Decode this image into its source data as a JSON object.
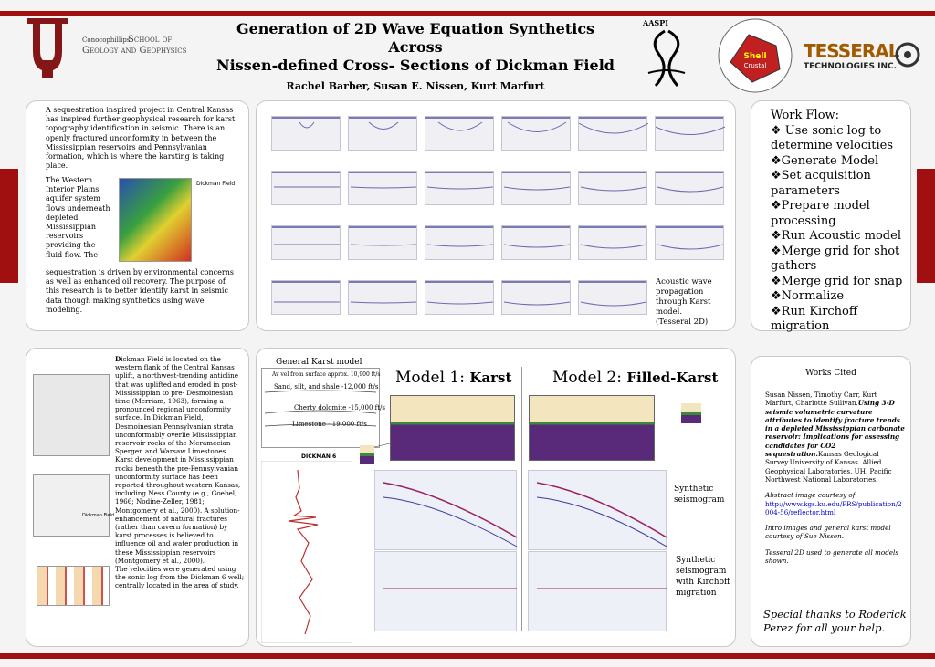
{
  "header": {
    "title_line1": "Generation of 2D Wave Equation Synthetics",
    "title_line2": "Across",
    "title_line3": "Nissen-defined Cross- Sections of Dickman Field",
    "authors": "Rachel Barber, Susan E. Nissen, Kurt Marfurt",
    "school_line1": "Conocophillips",
    "school_line2": "School of",
    "school_line3": "Geology and Geophysics",
    "aaspi_label": "AASPI",
    "tesseral_line1": "TESSERAL",
    "tesseral_line2": "TECHNOLOGIES INC."
  },
  "intro": {
    "para1": "A sequestration inspired project in Central Kansas has inspired further geophysical research for karst topography identification in seismic. There is an openly fractured unconformity in between the Mississippian reservoirs and Pennsylvanian formation, which is where the karsting is taking place.",
    "para2_lines": [
      "The Western",
      "Interior Plains",
      "aquifer system",
      "flows underneath",
      "depleted",
      "Mississippian",
      "reservoirs",
      "providing the",
      "fluid flow. The"
    ],
    "para3": "sequestration is driven by environmental concerns as well as enhanced oil recovery. The purpose of this research is to better identify karst in seismic data though making synthetics using wave modeling.",
    "map_label": "Dickman Field"
  },
  "propagation": {
    "caption": "Acoustic wave propagation through Karst model. (Tesseral 2D)"
  },
  "workflow": {
    "heading": "Work Flow:",
    "items": [
      "❖ Use sonic log to determine velocities",
      "❖Generate Model",
      "❖Set acquisition parameters",
      "❖Prepare model processing",
      "❖Run Acoustic model",
      "❖Merge grid for shot gathers",
      "❖Merge grid for  snap",
      "❖Normalize",
      "❖Run Kirchoff migration"
    ]
  },
  "dickman": {
    "dropcap": "D",
    "text": "ickman Field is located on the western flank of the Central Kansas uplift, a northwest-trending anticline that was uplifted and eroded in post-Mississippian to pre- Desmoinesian time (Merriam, 1963), forming a pronounced regional unconformity surface. In Dickman Field, Desmoinesian Pennsylvanian strata unconformably overlie Mississippian reservoir rocks of the Meramecian Spergen and Warsaw Limestones. Karst development in Mississippian rocks beneath the pre-Pennsylvanian unconformity surface has been reported throughout western Kansas, including Ness County (e.g., Goebel, 1966; Nodine-Zeller, 1981; Montgomery et al., 2000). A solution-enhancement of natural fractures (rather than cavern formation) by karst processes is believed to influence oil and water production in these Mississippian reservoirs (Montgomery et al., 2000).",
    "text2": "The velocities were generated using the sonic log from the Dickman 6 well; centrally located in the area of study.",
    "map_label": "Dickman Field"
  },
  "karst_model": {
    "heading": "General Karst model",
    "line1": "Av vel from surface approx. 10,900 ft/s",
    "line2": "Sand, silt, and shale -12,000 ft/s",
    "line3": "Cherty dolomite -15,000 ft/s",
    "line4": "Limestone - 19,000 ft/s",
    "well_label": "DICKMAN 6"
  },
  "models": {
    "model1_prefix": "Model 1: ",
    "model1_name": "Karst",
    "model2_prefix": "Model 2: ",
    "model2_name": "Filled-Karst",
    "synthetic_label": "Synthetic seismogram",
    "migration_label": "Synthetic seismogram with Kirchoff migration"
  },
  "works_cited": {
    "heading": "Works Cited",
    "ref_plain": "Susan Nissen, Timothy Carr, Kurt Marfurt, Charlotte Sullivan.",
    "ref_italic": "Using 3-D seismic volumetric curvature attributes to identify fracture trends in a depleted Mississippian carbonate reservoir: Implications for assessing candidates for CO2 sequestration.",
    "ref_tail": "Kansas Geological Survey.University of Kansas. Allied Geophysical Laboratories, UH. Pacific Northwest National Laboratories.",
    "abstract_credit": "Abstract image courtesy of",
    "link": "http://www.kgs.ku.edu/PRS/publication/2004-56/reflector.html",
    "intro_credit": "Intro images and general karst model courtesy of Sue Nissen.",
    "tesseral_credit": "Tesseral 2D used to generate all models shown.",
    "thanks": "Special thanks to Roderick Perez for all your help."
  },
  "colors": {
    "ou_crimson": "#841617",
    "bar_red": "#a01010",
    "model_tan": "#f3e6bf",
    "model_purple": "#5a2a7a",
    "model_green": "#3a8a3a"
  }
}
